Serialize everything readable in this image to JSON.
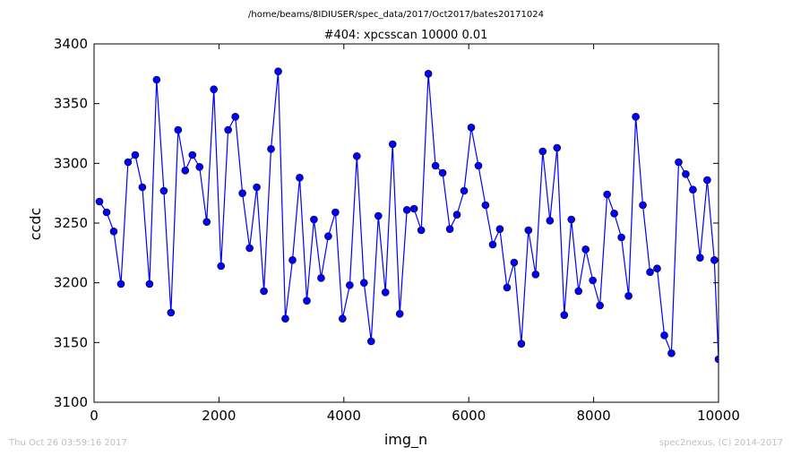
{
  "chart_data": {
    "type": "line",
    "suptitle": "/home/beams/8IDIUSER/spec_data/2017/Oct2017/bates20171024",
    "title": "#404: xpcsscan 10000 0.01",
    "xlabel": "img_n",
    "ylabel": "ccdc",
    "xlim": [
      0,
      10000
    ],
    "ylim": [
      3100,
      3400
    ],
    "xticks": [
      0,
      2000,
      4000,
      6000,
      8000,
      10000
    ],
    "yticks": [
      3100,
      3150,
      3200,
      3250,
      3300,
      3350,
      3400
    ],
    "grid": false,
    "marker": "circle",
    "color": "#0000ff",
    "series": [
      {
        "x": [
          86,
          201,
          315,
          430,
          544,
          659,
          773,
          888,
          1002,
          1117,
          1231,
          1346,
          1460,
          1575,
          1689,
          1804,
          1918,
          2033,
          2147,
          2262,
          2376,
          2491,
          2605,
          2720,
          2834,
          2949,
          3063,
          3178,
          3292,
          3407,
          3521,
          3636,
          3750,
          3865,
          3979,
          4094,
          4208,
          4323,
          4437,
          4552,
          4666,
          4781,
          4895,
          5010,
          5124,
          5239,
          5353,
          5468,
          5582,
          5697,
          5811,
          5926,
          6040,
          6155,
          6269,
          6384,
          6498,
          6613,
          6727,
          6842,
          6956,
          7071,
          7185,
          7300,
          7414,
          7529,
          7643,
          7758,
          7872,
          7987,
          8101,
          8216,
          8330,
          8445,
          8559,
          8674,
          8788,
          8903,
          9017,
          9132,
          9246,
          9361,
          9475,
          9590,
          9704,
          9819,
          9933,
          10000
        ],
        "y": [
          3268,
          3259,
          3243,
          3199,
          3301,
          3307,
          3280,
          3199,
          3370,
          3277,
          3175,
          3328,
          3294,
          3307,
          3297,
          3251,
          3362,
          3214,
          3328,
          3339,
          3275,
          3229,
          3280,
          3193,
          3312,
          3377,
          3170,
          3219,
          3288,
          3185,
          3253,
          3204,
          3239,
          3259,
          3170,
          3198,
          3306,
          3200,
          3151,
          3256,
          3192,
          3316,
          3174,
          3261,
          3262,
          3244,
          3375,
          3298,
          3292,
          3245,
          3257,
          3277,
          3330,
          3298,
          3265,
          3232,
          3245,
          3196,
          3217,
          3149,
          3244,
          3207,
          3310,
          3252,
          3313,
          3173,
          3253,
          3193,
          3228,
          3202,
          3181,
          3274,
          3258,
          3238,
          3189,
          3339,
          3265,
          3209,
          3212,
          3156,
          3141,
          3301,
          3291,
          3278,
          3221,
          3286,
          3219,
          3136
        ]
      }
    ]
  },
  "footer": {
    "timestamp": "Thu Oct 26 03:59:16 2017",
    "credit": "spec2nexus, (C) 2014-2017"
  }
}
